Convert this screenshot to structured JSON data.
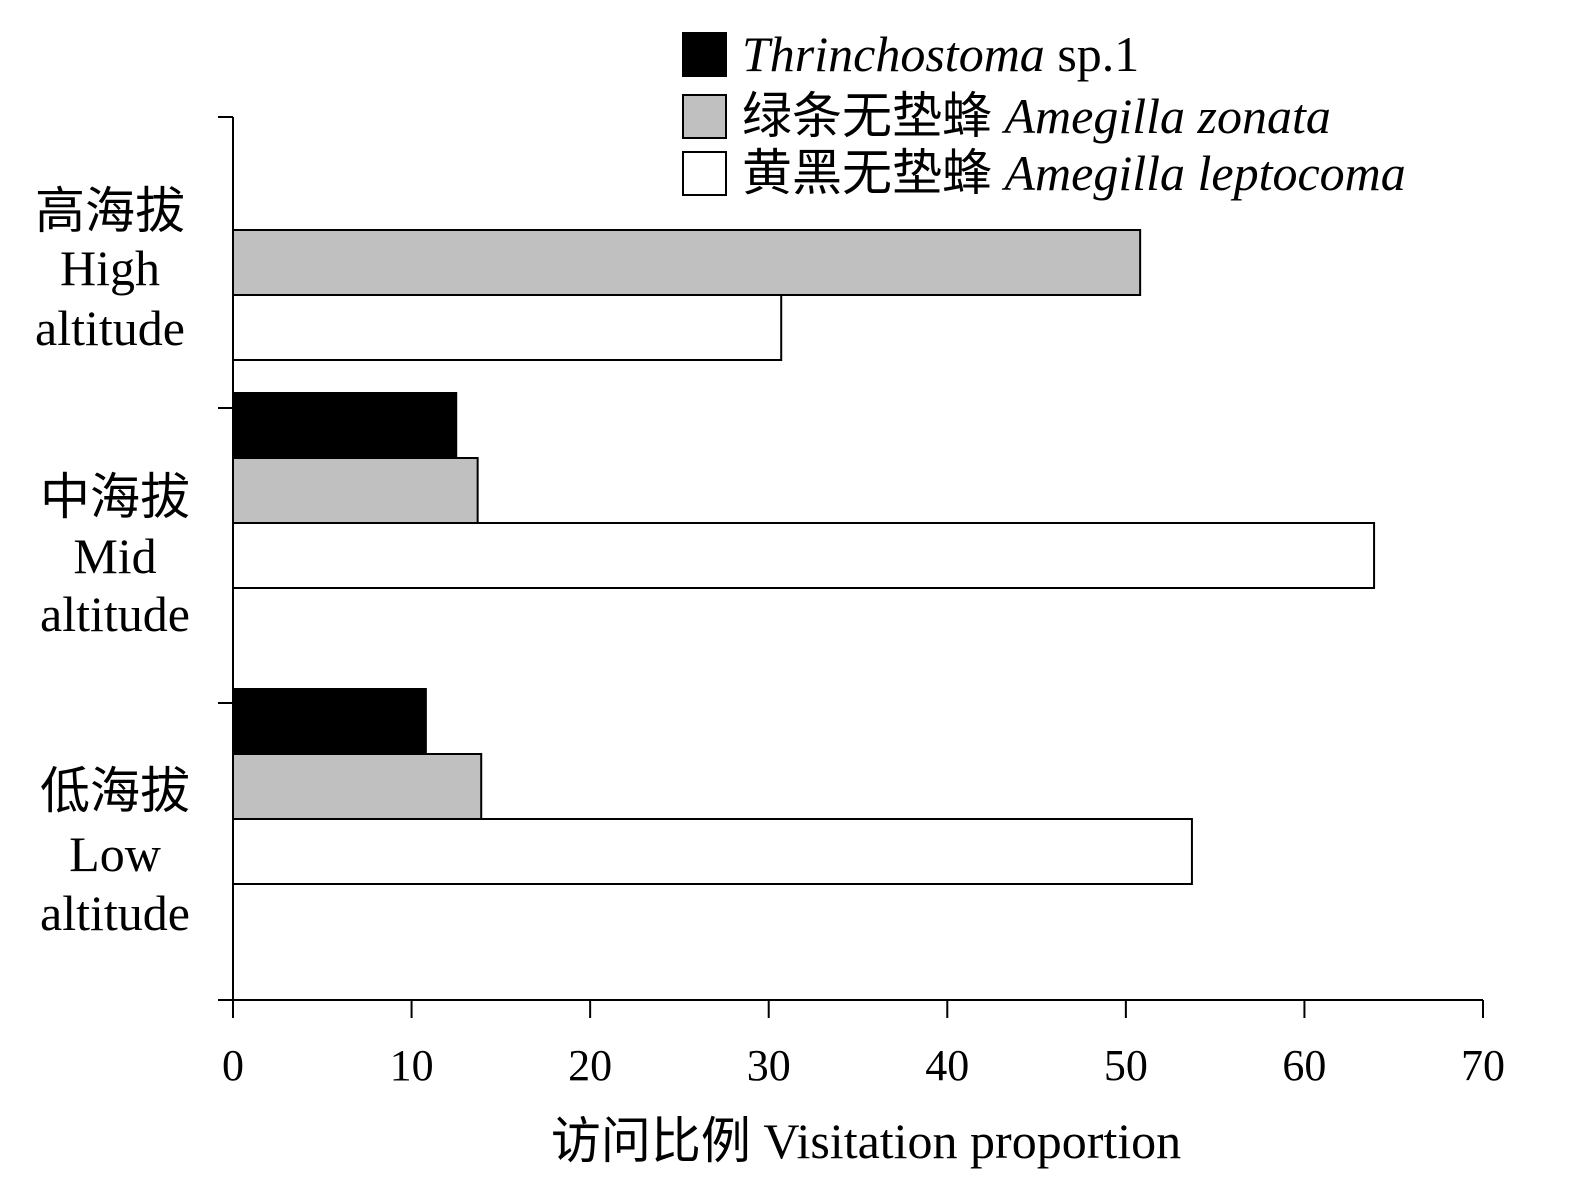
{
  "chart_data": {
    "type": "bar",
    "orientation": "horizontal",
    "categories": [
      {
        "zh": "高海拔",
        "en1": "High",
        "en2": "altitude"
      },
      {
        "zh": "中海拔",
        "en1": "Mid",
        "en2": "altitude"
      },
      {
        "zh": "低海拔",
        "en1": "Low",
        "en2": "altitude"
      }
    ],
    "series": [
      {
        "key": "thrinchostoma",
        "zh": "",
        "sci": "Thrinchostoma",
        "suffix": " sp.1",
        "color": "#000000",
        "values": [
          0,
          12.5,
          10.8
        ]
      },
      {
        "key": "zonata",
        "zh": "绿条无垫蜂",
        "sci": "Amegilla zonata",
        "suffix": "",
        "color": "#c0c0c0",
        "values": [
          50.8,
          13.7,
          13.9
        ]
      },
      {
        "key": "leptocoma",
        "zh": "黄黑无垫蜂",
        "sci": "Amegilla leptocoma",
        "suffix": "",
        "color": "#ffffff",
        "values": [
          30.7,
          63.9,
          53.7
        ]
      }
    ],
    "xlabel": "访问比例 Visitation proportion",
    "xlim": [
      0,
      70
    ],
    "xticks": [
      0,
      10,
      20,
      30,
      40,
      50,
      60,
      70
    ],
    "legend_position": "top-right",
    "grid": false
  }
}
